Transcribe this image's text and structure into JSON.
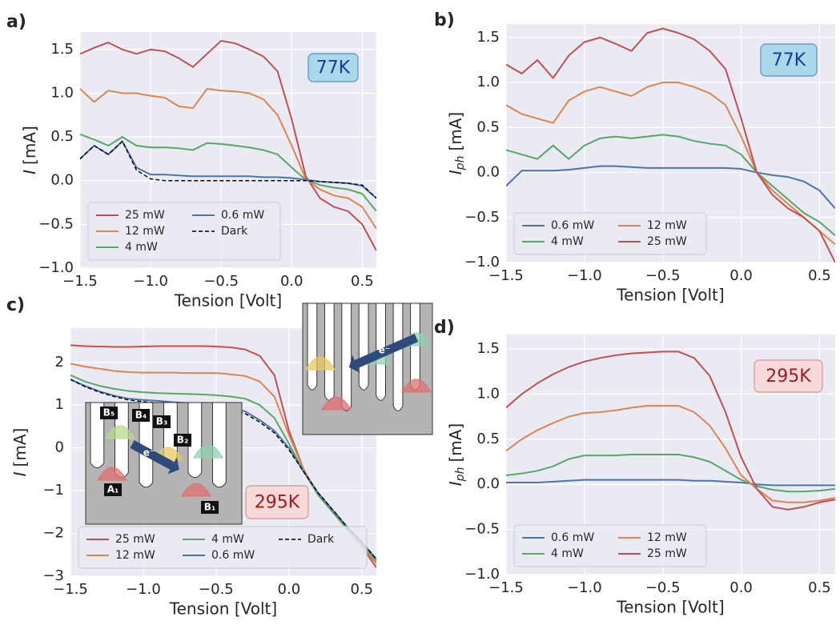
{
  "chart_data": [
    {
      "type": "line",
      "panel_label": "a)",
      "xlabel": "Tension [Volt]",
      "ylabel_symbol": "I",
      "ylabel_unit": "[mA]",
      "annotation": {
        "text": "77K",
        "color": "#1f3a93",
        "face": "#a8d8ea",
        "edge": "#5b8fc9"
      },
      "legend": "lower left",
      "legend_ncol": 2,
      "grid": true,
      "x": [
        -1.5,
        -1.4,
        -1.3,
        -1.2,
        -1.1,
        -1.0,
        -0.9,
        -0.8,
        -0.7,
        -0.6,
        -0.5,
        -0.4,
        -0.3,
        -0.2,
        -0.1,
        0.0,
        0.1,
        0.2,
        0.3,
        0.4,
        0.5,
        0.6
      ],
      "xlim": [
        -1.5,
        0.6
      ],
      "ylim": [
        -1.0,
        1.7
      ],
      "xticks": [
        {
          "value": -1.5,
          "label": "−1.5"
        },
        {
          "value": -1.0,
          "label": "−1.0"
        },
        {
          "value": -0.5,
          "label": "−0.5"
        },
        {
          "value": 0.0,
          "label": "0.0"
        },
        {
          "value": 0.5,
          "label": "0.5"
        }
      ],
      "yticks": [
        {
          "value": -1.0,
          "label": "−1.0"
        },
        {
          "value": -0.5,
          "label": "−0.5"
        },
        {
          "value": 0.0,
          "label": "0.0"
        },
        {
          "value": 0.5,
          "label": "0.5"
        },
        {
          "value": 1.0,
          "label": "1.0"
        },
        {
          "value": 1.5,
          "label": "1.5"
        }
      ],
      "series": [
        {
          "name": "25 mW",
          "color": "#c44e52",
          "style": "solid",
          "values": [
            1.45,
            1.52,
            1.58,
            1.5,
            1.45,
            1.5,
            1.48,
            1.4,
            1.3,
            1.45,
            1.6,
            1.57,
            1.5,
            1.42,
            1.25,
            0.7,
            0.05,
            -0.2,
            -0.3,
            -0.35,
            -0.5,
            -0.8
          ]
        },
        {
          "name": "12 mW",
          "color": "#dd8452",
          "style": "solid",
          "values": [
            1.05,
            0.9,
            1.03,
            1.0,
            1.0,
            0.97,
            0.95,
            0.85,
            0.83,
            1.05,
            1.03,
            1.02,
            1.0,
            0.93,
            0.75,
            0.4,
            0.02,
            -0.1,
            -0.17,
            -0.2,
            -0.3,
            -0.55
          ]
        },
        {
          "name": "4 mW",
          "color": "#55a868",
          "style": "solid",
          "values": [
            0.53,
            0.47,
            0.4,
            0.5,
            0.4,
            0.38,
            0.38,
            0.37,
            0.35,
            0.43,
            0.42,
            0.4,
            0.38,
            0.35,
            0.3,
            0.15,
            0.01,
            -0.05,
            -0.08,
            -0.1,
            -0.15,
            -0.35
          ]
        },
        {
          "name": "0.6 mW",
          "color": "#4c72b0",
          "style": "solid",
          "values": [
            0.25,
            0.4,
            0.3,
            0.45,
            0.15,
            0.07,
            0.07,
            0.06,
            0.05,
            0.05,
            0.05,
            0.05,
            0.05,
            0.04,
            0.04,
            0.03,
            0.01,
            -0.01,
            -0.02,
            -0.03,
            -0.06,
            -0.2
          ]
        },
        {
          "name": "Dark",
          "color": "#000000",
          "style": "dashed",
          "values": [
            0.25,
            0.4,
            0.3,
            0.45,
            0.12,
            0.02,
            0.0,
            0.0,
            0.0,
            0.0,
            0.0,
            0.0,
            0.0,
            0.0,
            0.0,
            0.0,
            0.0,
            -0.01,
            -0.02,
            -0.03,
            -0.05,
            -0.2
          ]
        }
      ]
    },
    {
      "type": "line",
      "panel_label": "b)",
      "xlabel": "Tension [Volt]",
      "ylabel_symbol": "I",
      "ylabel_subscript": "ph",
      "ylabel_unit": "[mA]",
      "annotation": {
        "text": "77K",
        "color": "#1f3a93",
        "face": "#a8d8ea",
        "edge": "#5b8fc9"
      },
      "legend": "lower left",
      "legend_ncol": 2,
      "grid": true,
      "x": [
        -1.5,
        -1.4,
        -1.3,
        -1.2,
        -1.1,
        -1.0,
        -0.9,
        -0.8,
        -0.7,
        -0.6,
        -0.5,
        -0.4,
        -0.3,
        -0.2,
        -0.1,
        0.0,
        0.1,
        0.2,
        0.3,
        0.4,
        0.5,
        0.6
      ],
      "xlim": [
        -1.5,
        0.6
      ],
      "ylim": [
        -1.0,
        1.65
      ],
      "xticks": [
        {
          "value": -1.5,
          "label": "−1.5"
        },
        {
          "value": -1.0,
          "label": "−1.0"
        },
        {
          "value": -0.5,
          "label": "−0.5"
        },
        {
          "value": 0.0,
          "label": "0.0"
        },
        {
          "value": 0.5,
          "label": "0.5"
        }
      ],
      "yticks": [
        {
          "value": -1.0,
          "label": "−1.0"
        },
        {
          "value": -0.5,
          "label": "−0.5"
        },
        {
          "value": 0.0,
          "label": "0.0"
        },
        {
          "value": 0.5,
          "label": "0.5"
        },
        {
          "value": 1.0,
          "label": "1.0"
        },
        {
          "value": 1.5,
          "label": "1.5"
        }
      ],
      "series": [
        {
          "name": "0.6 mW",
          "color": "#4c72b0",
          "style": "solid",
          "values": [
            -0.15,
            0.02,
            0.02,
            0.02,
            0.03,
            0.05,
            0.07,
            0.07,
            0.06,
            0.05,
            0.05,
            0.05,
            0.05,
            0.05,
            0.05,
            0.04,
            0.0,
            -0.03,
            -0.05,
            -0.1,
            -0.2,
            -0.4
          ]
        },
        {
          "name": "4 mW",
          "color": "#55a868",
          "style": "solid",
          "values": [
            0.25,
            0.2,
            0.15,
            0.3,
            0.15,
            0.3,
            0.38,
            0.4,
            0.38,
            0.4,
            0.42,
            0.4,
            0.35,
            0.32,
            0.3,
            0.2,
            0.0,
            -0.15,
            -0.3,
            -0.45,
            -0.55,
            -0.7
          ]
        },
        {
          "name": "12 mW",
          "color": "#dd8452",
          "style": "solid",
          "values": [
            0.75,
            0.65,
            0.6,
            0.55,
            0.8,
            0.9,
            0.95,
            0.9,
            0.85,
            0.95,
            1.0,
            1.0,
            0.95,
            0.88,
            0.75,
            0.4,
            0.0,
            -0.2,
            -0.35,
            -0.5,
            -0.65,
            -0.8
          ]
        },
        {
          "name": "25 mW",
          "color": "#c44e52",
          "style": "solid",
          "values": [
            1.2,
            1.1,
            1.25,
            1.05,
            1.3,
            1.45,
            1.5,
            1.43,
            1.35,
            1.55,
            1.6,
            1.55,
            1.48,
            1.35,
            1.15,
            0.6,
            0.0,
            -0.25,
            -0.4,
            -0.5,
            -0.65,
            -1.0
          ]
        }
      ]
    },
    {
      "type": "line",
      "panel_label": "c)",
      "xlabel": "Tension [Volt]",
      "ylabel_symbol": "I",
      "ylabel_unit": "[mA]",
      "annotation": {
        "text": "295K",
        "color": "#a01c1c",
        "face": "#f6dada",
        "edge": "#d99494"
      },
      "legend": "lower left",
      "legend_ncol": 3,
      "grid": true,
      "insets": [
        {
          "labels": [
            "B₅",
            "B₄",
            "B₃",
            "B₂",
            "A₁",
            "B₁",
            "e⁻"
          ]
        },
        {
          "labels": [
            "e⁻"
          ]
        }
      ],
      "x": [
        -1.5,
        -1.4,
        -1.3,
        -1.2,
        -1.1,
        -1.0,
        -0.9,
        -0.8,
        -0.7,
        -0.6,
        -0.5,
        -0.4,
        -0.3,
        -0.2,
        -0.1,
        0.0,
        0.1,
        0.2,
        0.3,
        0.4,
        0.5,
        0.6
      ],
      "xlim": [
        -1.5,
        0.6
      ],
      "ylim": [
        -3,
        2.8
      ],
      "xticks": [
        {
          "value": -1.5,
          "label": "−1.5"
        },
        {
          "value": -1.0,
          "label": "−1.0"
        },
        {
          "value": -0.5,
          "label": "−0.5"
        },
        {
          "value": 0.0,
          "label": "0.0"
        },
        {
          "value": 0.5,
          "label": "0.5"
        }
      ],
      "yticks": [
        {
          "value": -3,
          "label": "−3"
        },
        {
          "value": -2,
          "label": "−2"
        },
        {
          "value": -1,
          "label": "−1"
        },
        0,
        1,
        2
      ],
      "series": [
        {
          "name": "25 mW",
          "color": "#c44e52",
          "style": "solid",
          "values": [
            2.4,
            2.38,
            2.37,
            2.36,
            2.36,
            2.37,
            2.38,
            2.38,
            2.38,
            2.38,
            2.37,
            2.35,
            2.3,
            2.15,
            1.7,
            0.4,
            -0.5,
            -1.1,
            -1.5,
            -1.9,
            -2.3,
            -2.8
          ]
        },
        {
          "name": "12 mW",
          "color": "#dd8452",
          "style": "solid",
          "values": [
            1.97,
            1.9,
            1.85,
            1.8,
            1.77,
            1.76,
            1.76,
            1.76,
            1.75,
            1.75,
            1.75,
            1.72,
            1.68,
            1.55,
            1.2,
            0.3,
            -0.5,
            -1.1,
            -1.5,
            -1.9,
            -2.3,
            -2.7
          ]
        },
        {
          "name": "4 mW",
          "color": "#55a868",
          "style": "solid",
          "values": [
            1.7,
            1.55,
            1.45,
            1.38,
            1.33,
            1.3,
            1.28,
            1.27,
            1.26,
            1.25,
            1.23,
            1.2,
            1.15,
            1.0,
            0.7,
            0.1,
            -0.55,
            -1.1,
            -1.5,
            -1.9,
            -2.25,
            -2.65
          ]
        },
        {
          "name": "0.6 mW",
          "color": "#4c72b0",
          "style": "solid",
          "values": [
            1.6,
            1.45,
            1.32,
            1.22,
            1.15,
            1.12,
            1.1,
            1.07,
            1.05,
            1.03,
            1.0,
            0.95,
            0.85,
            0.65,
            0.4,
            0.0,
            -0.55,
            -1.05,
            -1.45,
            -1.85,
            -2.2,
            -2.6
          ]
        },
        {
          "name": "Dark",
          "color": "#000000",
          "style": "dashed",
          "values": [
            1.6,
            1.43,
            1.3,
            1.2,
            1.12,
            1.08,
            1.05,
            1.02,
            1.0,
            0.98,
            0.95,
            0.9,
            0.8,
            0.6,
            0.35,
            -0.05,
            -0.55,
            -1.05,
            -1.45,
            -1.85,
            -2.2,
            -2.6
          ]
        }
      ]
    },
    {
      "type": "line",
      "panel_label": "d)",
      "xlabel": "Tension [Volt]",
      "ylabel_symbol": "I",
      "ylabel_subscript": "ph",
      "ylabel_unit": "[mA]",
      "annotation": {
        "text": "295K",
        "color": "#a01c1c",
        "face": "#f6dada",
        "edge": "#d99494"
      },
      "legend": "lower left",
      "legend_ncol": 2,
      "grid": true,
      "x": [
        -1.5,
        -1.4,
        -1.3,
        -1.2,
        -1.1,
        -1.0,
        -0.9,
        -0.8,
        -0.7,
        -0.6,
        -0.5,
        -0.4,
        -0.3,
        -0.2,
        -0.1,
        0.0,
        0.1,
        0.2,
        0.3,
        0.4,
        0.5,
        0.6
      ],
      "xlim": [
        -1.5,
        0.6
      ],
      "ylim": [
        -1.0,
        1.66
      ],
      "xticks": [
        {
          "value": -1.5,
          "label": "−1.5"
        },
        {
          "value": -1.0,
          "label": "−1.0"
        },
        {
          "value": -0.5,
          "label": "−0.5"
        },
        {
          "value": 0.0,
          "label": "0.0"
        },
        {
          "value": 0.5,
          "label": "0.5"
        }
      ],
      "yticks": [
        {
          "value": -1.0,
          "label": "−1.0"
        },
        {
          "value": -0.5,
          "label": "−0.5"
        },
        {
          "value": 0.0,
          "label": "0.0"
        },
        {
          "value": 0.5,
          "label": "0.5"
        },
        {
          "value": 1.0,
          "label": "1.0"
        },
        {
          "value": 1.5,
          "label": "1.5"
        }
      ],
      "series": [
        {
          "name": "0.6 mW",
          "color": "#4c72b0",
          "style": "solid",
          "values": [
            0.02,
            0.02,
            0.02,
            0.03,
            0.04,
            0.05,
            0.05,
            0.05,
            0.05,
            0.05,
            0.05,
            0.05,
            0.04,
            0.04,
            0.03,
            0.02,
            0.0,
            -0.01,
            -0.01,
            -0.01,
            -0.01,
            -0.01
          ]
        },
        {
          "name": "4 mW",
          "color": "#55a868",
          "style": "solid",
          "values": [
            0.1,
            0.12,
            0.15,
            0.2,
            0.28,
            0.32,
            0.32,
            0.32,
            0.33,
            0.33,
            0.33,
            0.33,
            0.3,
            0.25,
            0.15,
            0.05,
            -0.02,
            -0.06,
            -0.08,
            -0.08,
            -0.07,
            -0.05
          ]
        },
        {
          "name": "12 mW",
          "color": "#dd8452",
          "style": "solid",
          "values": [
            0.37,
            0.5,
            0.6,
            0.68,
            0.75,
            0.79,
            0.8,
            0.82,
            0.85,
            0.87,
            0.87,
            0.87,
            0.8,
            0.65,
            0.4,
            0.1,
            -0.05,
            -0.18,
            -0.2,
            -0.2,
            -0.18,
            -0.15
          ]
        },
        {
          "name": "25 mW",
          "color": "#c44e52",
          "style": "solid",
          "values": [
            0.85,
            1.0,
            1.12,
            1.22,
            1.3,
            1.36,
            1.4,
            1.43,
            1.45,
            1.46,
            1.47,
            1.47,
            1.4,
            1.2,
            0.8,
            0.3,
            -0.05,
            -0.25,
            -0.28,
            -0.25,
            -0.2,
            -0.17
          ]
        }
      ]
    }
  ]
}
